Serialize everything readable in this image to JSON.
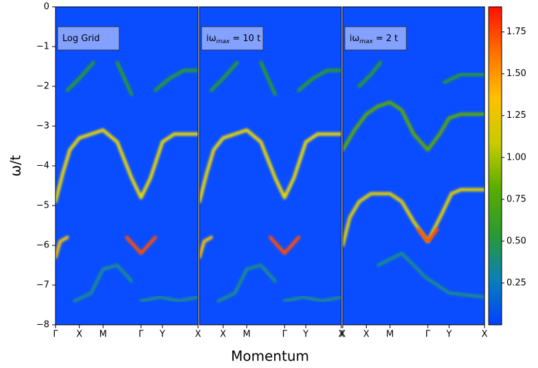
{
  "chart_data": {
    "type": "heatmap",
    "ylabel": "ω/t",
    "xlabel": "Momentum",
    "ylim": [
      -8,
      0
    ],
    "yticks": [
      {
        "value": -8,
        "label": "−8"
      },
      {
        "value": -7,
        "label": "−7"
      },
      {
        "value": -6,
        "label": "−6"
      },
      {
        "value": -5,
        "label": "−5"
      },
      {
        "value": -4,
        "label": "−4"
      },
      {
        "value": -3,
        "label": "−3"
      },
      {
        "value": -2,
        "label": "−2"
      },
      {
        "value": -1,
        "label": "−1"
      },
      0
    ],
    "background": "#0a4cff",
    "clim": [
      0,
      1.9
    ],
    "cticks": [
      0.25,
      {
        "value": 0.5,
        "label": "0.50"
      },
      0.75,
      {
        "value": 1.0,
        "label": "1.00"
      },
      1.25,
      {
        "value": 1.5,
        "label": "1.50"
      },
      1.75
    ],
    "colormap": [
      "#0040ff",
      "#0a80b8",
      "#2a9a30",
      "#5aac00",
      "#c8cc00",
      "#ffc000",
      "#ff7000",
      "#ff1000"
    ],
    "panels": [
      {
        "label": {
          "text": "Log Grid"
        },
        "xlim": [
          0,
          6
        ],
        "xticks": [
          {
            "value": 0,
            "label": "Γ"
          },
          {
            "value": 1,
            "label": "X"
          },
          {
            "value": 2,
            "label": "M"
          },
          {
            "value": 3.6,
            "label": "Γ"
          },
          {
            "value": 4.5,
            "label": "Y"
          },
          {
            "value": 6,
            "label": "X"
          }
        ],
        "bands": [
          {
            "x": [
              0,
              0.3,
              0.6,
              1,
              1.5,
              2,
              2.6,
              3.2,
              3.6,
              4.0,
              4.5,
              5,
              6
            ],
            "y": [
              -4.9,
              -4.2,
              -3.6,
              -3.3,
              -3.2,
              -3.1,
              -3.4,
              -4.3,
              -4.8,
              -4.3,
              -3.4,
              -3.2,
              -3.2
            ],
            "color": "#e8d800"
          },
          {
            "x": [
              0,
              0.2,
              0.5
            ],
            "y": [
              -6.3,
              -5.9,
              -5.8
            ],
            "color": "#f0c000"
          },
          {
            "x": [
              3.0,
              3.3,
              3.6,
              3.9,
              4.2
            ],
            "y": [
              -5.8,
              -6.0,
              -6.2,
              -6.0,
              -5.8
            ],
            "color": "#ff5000"
          },
          {
            "x": [
              0.5,
              1,
              1.6
            ],
            "y": [
              -2.1,
              -1.8,
              -1.4
            ],
            "color": "#2a9a30"
          },
          {
            "x": [
              2.6,
              2.9,
              3.2
            ],
            "y": [
              -1.4,
              -1.8,
              -2.2
            ],
            "color": "#2a9a30"
          },
          {
            "x": [
              4.2,
              4.8,
              5.4,
              6
            ],
            "y": [
              -2.1,
              -1.8,
              -1.6,
              -1.6
            ],
            "color": "#2a9a30"
          },
          {
            "x": [
              0.8,
              1.5,
              2,
              2.6,
              3.2
            ],
            "y": [
              -7.4,
              -7.2,
              -6.6,
              -6.5,
              -6.9
            ],
            "color": "#1a8a90"
          },
          {
            "x": [
              3.6,
              4.4,
              5.2,
              6
            ],
            "y": [
              -7.4,
              -7.3,
              -7.4,
              -7.3
            ],
            "color": "#1a8a90"
          }
        ]
      },
      {
        "label": {
          "prefix": "iω",
          "sub": "max",
          "suffix": " = 10 t"
        },
        "xlim": [
          0,
          6
        ],
        "xticks": [
          {
            "value": 1,
            "label": "X"
          },
          {
            "value": 2,
            "label": "M"
          },
          {
            "value": 3.6,
            "label": "Γ"
          },
          {
            "value": 4.5,
            "label": "Y"
          },
          {
            "value": 6,
            "label": "X"
          }
        ],
        "bands": [
          {
            "x": [
              0,
              0.3,
              0.6,
              1,
              1.5,
              2,
              2.6,
              3.2,
              3.6,
              4.0,
              4.5,
              5,
              6
            ],
            "y": [
              -4.9,
              -4.2,
              -3.6,
              -3.3,
              -3.2,
              -3.1,
              -3.4,
              -4.3,
              -4.8,
              -4.3,
              -3.4,
              -3.2,
              -3.2
            ],
            "color": "#e8d800"
          },
          {
            "x": [
              0,
              0.2,
              0.5
            ],
            "y": [
              -6.3,
              -5.9,
              -5.8
            ],
            "color": "#f0c000"
          },
          {
            "x": [
              3.0,
              3.3,
              3.6,
              3.9,
              4.2
            ],
            "y": [
              -5.8,
              -6.0,
              -6.2,
              -6.0,
              -5.8
            ],
            "color": "#ff5000"
          },
          {
            "x": [
              0.5,
              1,
              1.6
            ],
            "y": [
              -2.1,
              -1.8,
              -1.4
            ],
            "color": "#2a9a30"
          },
          {
            "x": [
              2.6,
              2.9,
              3.2
            ],
            "y": [
              -1.4,
              -1.8,
              -2.2
            ],
            "color": "#2a9a30"
          },
          {
            "x": [
              4.2,
              4.8,
              5.4,
              6
            ],
            "y": [
              -2.1,
              -1.8,
              -1.6,
              -1.6
            ],
            "color": "#2a9a30"
          },
          {
            "x": [
              0.8,
              1.5,
              2,
              2.6,
              3.2
            ],
            "y": [
              -7.4,
              -7.2,
              -6.6,
              -6.5,
              -6.9
            ],
            "color": "#1a8a90"
          },
          {
            "x": [
              3.6,
              4.4,
              5.2,
              6
            ],
            "y": [
              -7.4,
              -7.3,
              -7.4,
              -7.3
            ],
            "color": "#1a8a90"
          }
        ]
      },
      {
        "label": {
          "prefix": "iω",
          "sub": "max",
          "suffix": " = 2 t"
        },
        "xlim": [
          0,
          6
        ],
        "xticks": [
          {
            "value": 0,
            "label": "X"
          },
          {
            "value": 1,
            "label": "X"
          },
          {
            "value": 2,
            "label": "M"
          },
          {
            "value": 3.6,
            "label": "Γ"
          },
          {
            "value": 4.5,
            "label": "Y"
          },
          {
            "value": 6,
            "label": "X"
          }
        ],
        "bands": [
          {
            "x": [
              0,
              0.3,
              0.7,
              1.2,
              2,
              2.5,
              3.0,
              3.6,
              4.2,
              4.6,
              5,
              6
            ],
            "y": [
              -6.0,
              -5.3,
              -4.9,
              -4.7,
              -4.7,
              -4.9,
              -5.4,
              -5.9,
              -5.2,
              -4.7,
              -4.6,
              -4.6
            ],
            "color": "#e0d000"
          },
          {
            "x": [
              3.2,
              3.6,
              4.0
            ],
            "y": [
              -5.6,
              -5.9,
              -5.6
            ],
            "color": "#ff5000"
          },
          {
            "x": [
              0,
              0.5,
              1,
              1.5,
              2,
              2.5,
              3,
              3.6,
              4.1,
              4.5,
              5,
              6
            ],
            "y": [
              -3.6,
              -3.1,
              -2.7,
              -2.5,
              -2.4,
              -2.6,
              -3.2,
              -3.6,
              -3.2,
              -2.8,
              -2.7,
              -2.7
            ],
            "color": "#5aac00"
          },
          {
            "x": [
              0.7,
              1.2,
              1.6
            ],
            "y": [
              -2.0,
              -1.7,
              -1.4
            ],
            "color": "#2a9a30"
          },
          {
            "x": [
              4.3,
              5,
              6
            ],
            "y": [
              -1.9,
              -1.7,
              -1.7
            ],
            "color": "#2a9a30"
          },
          {
            "x": [
              1.5,
              2.5,
              3.5,
              4.5,
              6
            ],
            "y": [
              -6.5,
              -6.2,
              -6.8,
              -7.2,
              -7.3
            ],
            "color": "#1a8a90"
          }
        ]
      }
    ]
  }
}
